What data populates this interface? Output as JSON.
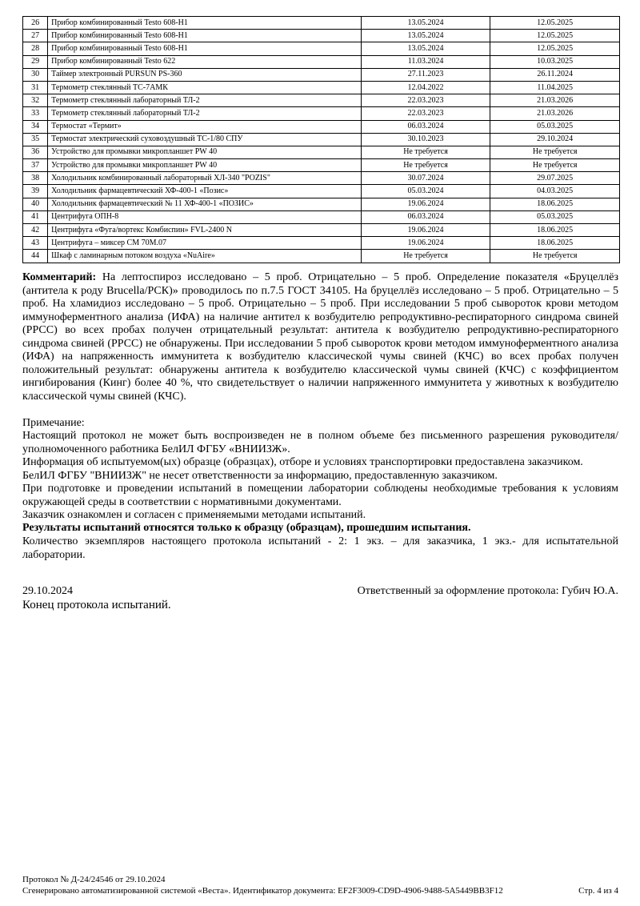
{
  "table": {
    "rows": [
      [
        "26",
        "Прибор комбинированный Testo 608-H1",
        "13.05.2024",
        "12.05.2025"
      ],
      [
        "27",
        "Прибор комбинированный Testo 608-H1",
        "13.05.2024",
        "12.05.2025"
      ],
      [
        "28",
        "Прибор комбинированный Testo 608-H1",
        "13.05.2024",
        "12.05.2025"
      ],
      [
        "29",
        "Прибор комбинированный Testo 622",
        "11.03.2024",
        "10.03.2025"
      ],
      [
        "30",
        "Таймер электронный PURSUN PS-360",
        "27.11.2023",
        "26.11.2024"
      ],
      [
        "31",
        "Термометр стеклянный ТС-7АМК",
        "12.04.2022",
        "11.04.2025"
      ],
      [
        "32",
        "Термометр стеклянный лабораторный ТЛ-2",
        "22.03.2023",
        "21.03.2026"
      ],
      [
        "33",
        "Термометр стеклянный лабораторный ТЛ-2",
        "22.03.2023",
        "21.03.2026"
      ],
      [
        "34",
        "Термостат «Термит»",
        "06.03.2024",
        "05.03.2025"
      ],
      [
        "35",
        "Термостат электрический суховоздушный ТС-1/80 СПУ",
        "30.10.2023",
        "29.10.2024"
      ],
      [
        "36",
        "Устройство для промывки микропланшет PW 40",
        "Не требуется",
        "Не требуется"
      ],
      [
        "37",
        "Устройство для промывки микропланшет PW 40",
        "Не требуется",
        "Не требуется"
      ],
      [
        "38",
        "Холодильник комбинированный лабораторный ХЛ-340 \"POZIS\"",
        "30.07.2024",
        "29.07.2025"
      ],
      [
        "39",
        "Холодильник фармацевтический ХФ-400-1 «Позис»",
        "05.03.2024",
        "04.03.2025"
      ],
      [
        "40",
        "Холодильник фармацевтический № 11 ХФ-400-1 «ПОЗИС»",
        "19.06.2024",
        "18.06.2025"
      ],
      [
        "41",
        "Центрифуга ОПН-8",
        "06.03.2024",
        "05.03.2025"
      ],
      [
        "42",
        "Центрифуга «Фуга/вортекс Комбиспин» FVL-2400 N",
        "19.06.2024",
        "18.06.2025"
      ],
      [
        "43",
        "Центрифуга – миксер СМ 70М.07",
        "19.06.2024",
        "18.06.2025"
      ],
      [
        "44",
        "Шкаф с ламинарным потоком воздуха «NuAire»",
        "Не требуется",
        "Не требуется"
      ]
    ]
  },
  "comment": {
    "label": "Комментарий:",
    "text": " На лептоспироз исследовано – 5 проб. Отрицательно – 5 проб. Определение показателя «Бруцеллёз (антитела к роду Brucella/РСК)» проводилось по п.7.5 ГОСТ 34105. На бруцеллёз исследовано – 5 проб. Отрицательно – 5 проб. На хламидиоз исследовано – 5 проб. Отрицательно – 5 проб. При исследовании 5 проб сывороток крови методом иммуноферментного анализа (ИФА) на наличие антител к возбудителю репродуктивно-респираторного синдрома свиней (РРСС) во всех пробах получен отрицательный результат: антитела к возбудителю репродуктивно-респираторного синдрома свиней (РРСС) не обнаружены. При исследовании 5 проб сывороток крови методом иммуноферментного анализа (ИФА) на напряженность иммунитета к возбудителю классической чумы свиней (КЧС) во всех пробах получен положительный результат: обнаружены антитела к возбудителю классической чумы свиней (КЧС) с коэффициентом ингибирования (Кинг) более 40 %, что свидетельствует о наличии напряженного иммунитета у животных к возбудителю классической чумы свиней (КЧС)."
  },
  "note": {
    "title": "Примечание:",
    "p1": "Настоящий протокол не может быть воспроизведен не в полном объеме без письменного разрешения руководителя/уполномоченного работника БелИЛ ФГБУ «ВНИИЗЖ».",
    "p2": "Информация об испытуемом(ых) образце (образцах), отборе и условиях транспортировки предоставлена заказчиком. БелИЛ ФГБУ \"ВНИИЗЖ\" не несет ответственности за информацию, предоставленную заказчиком.",
    "p3": "При подготовке и проведении испытаний в помещении лаборатории соблюдены необходимые требования к условиям окружающей среды в соответствии с нормативными документами.",
    "p4": "Заказчик ознакомлен и согласен с применяемыми методами испытаний.",
    "p5": "Результаты испытаний относятся только к образцу (образцам), прошедшим испытания.",
    "p6": "Количество экземпляров настоящего протокола испытаний - 2: 1 экз. – для заказчика, 1 экз.- для испытательной лаборатории."
  },
  "sign": {
    "date": "29.10.2024",
    "responsible": "Ответственный за оформление протокола: Губич Ю.А.",
    "end": "Конец протокола испытаний."
  },
  "footer": {
    "protocol": "Протокол № Д-24/24546 от 29.10.2024",
    "generated": "Сгенерировано автоматизированной системой «Веста». Идентификатор документа: EF2F3009-CD9D-4906-9488-5A5449BB3F12",
    "page": "Стр. 4 из 4"
  }
}
